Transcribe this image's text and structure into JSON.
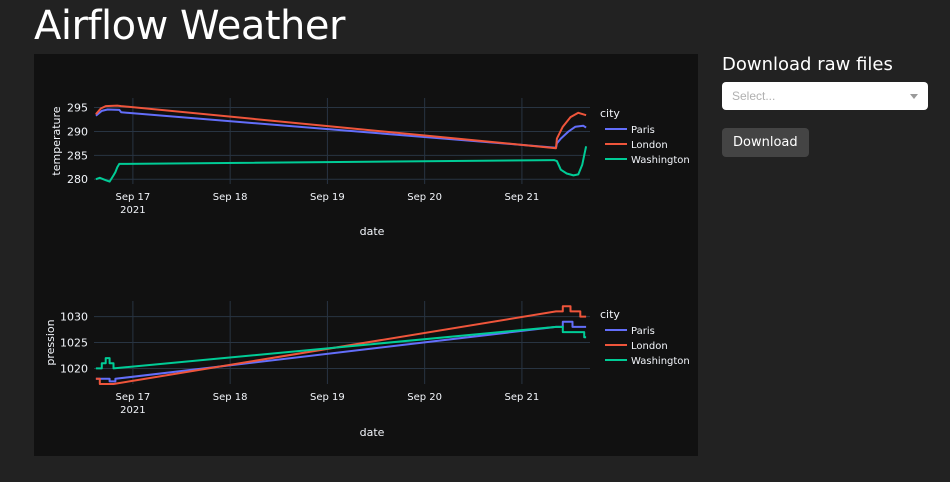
{
  "page": {
    "title": "Airflow Weather"
  },
  "sidebar": {
    "heading": "Download raw files",
    "select_placeholder": "Select...",
    "download_label": "Download"
  },
  "colors": {
    "Paris": "#636efa",
    "London": "#ef553b",
    "Washington": "#00cc96"
  },
  "chart_data": [
    {
      "type": "line",
      "xlabel": "date",
      "ylabel": "temperature",
      "legend_title": "city",
      "legend_placement": "right",
      "x_ticks": [
        "Sep 17\n2021",
        "Sep 18",
        "Sep 19",
        "Sep 20",
        "Sep 21"
      ],
      "x_range": [
        16.6,
        21.7
      ],
      "ylim": [
        279,
        297
      ],
      "y_ticks": [
        280,
        285,
        290,
        295
      ],
      "series": [
        {
          "name": "Paris",
          "points": [
            [
              16.62,
              293.3
            ],
            [
              16.68,
              294.3
            ],
            [
              16.74,
              294.6
            ],
            [
              16.86,
              294.5
            ],
            [
              16.88,
              294.0
            ],
            [
              21.35,
              286.6
            ],
            [
              21.36,
              287.5
            ],
            [
              21.4,
              288.5
            ],
            [
              21.48,
              290.0
            ],
            [
              21.55,
              291.0
            ],
            [
              21.63,
              291.2
            ],
            [
              21.66,
              290.8
            ]
          ]
        },
        {
          "name": "London",
          "points": [
            [
              16.62,
              293.6
            ],
            [
              16.67,
              294.8
            ],
            [
              16.72,
              295.3
            ],
            [
              16.84,
              295.4
            ],
            [
              16.88,
              295.3
            ],
            [
              21.35,
              286.5
            ],
            [
              21.36,
              288.5
            ],
            [
              21.42,
              291.0
            ],
            [
              21.5,
              293.0
            ],
            [
              21.58,
              293.9
            ],
            [
              21.66,
              293.4
            ]
          ]
        },
        {
          "name": "Washington",
          "points": [
            [
              16.62,
              280.0
            ],
            [
              16.66,
              280.3
            ],
            [
              16.72,
              279.8
            ],
            [
              16.76,
              279.5
            ],
            [
              16.8,
              280.8
            ],
            [
              16.82,
              281.5
            ],
            [
              16.84,
              282.5
            ],
            [
              16.86,
              283.2
            ],
            [
              21.33,
              284.0
            ],
            [
              21.36,
              283.8
            ],
            [
              21.4,
              282.0
            ],
            [
              21.46,
              281.2
            ],
            [
              21.53,
              280.8
            ],
            [
              21.58,
              281.0
            ],
            [
              21.62,
              283.0
            ],
            [
              21.64,
              285.0
            ],
            [
              21.66,
              286.9
            ]
          ]
        }
      ]
    },
    {
      "type": "line",
      "xlabel": "date",
      "ylabel": "pression",
      "legend_title": "city",
      "legend_placement": "right",
      "x_ticks": [
        "Sep 17\n2021",
        "Sep 18",
        "Sep 19",
        "Sep 20",
        "Sep 21"
      ],
      "x_range": [
        16.6,
        21.7
      ],
      "ylim": [
        1017,
        1033
      ],
      "y_ticks": [
        1020,
        1025,
        1030
      ],
      "series": [
        {
          "name": "Paris",
          "points": [
            [
              16.62,
              1018.0
            ],
            [
              16.76,
              1018.0
            ],
            [
              16.76,
              1017.5
            ],
            [
              16.82,
              1017.5
            ],
            [
              16.82,
              1018.0
            ],
            [
              21.35,
              1028.0
            ],
            [
              21.42,
              1028.0
            ],
            [
              21.42,
              1029.0
            ],
            [
              21.52,
              1029.0
            ],
            [
              21.52,
              1028.0
            ],
            [
              21.66,
              1028.0
            ]
          ]
        },
        {
          "name": "London",
          "points": [
            [
              16.62,
              1018.0
            ],
            [
              16.66,
              1018.0
            ],
            [
              16.66,
              1017.0
            ],
            [
              16.8,
              1017.0
            ],
            [
              21.35,
              1031.0
            ],
            [
              21.42,
              1031.0
            ],
            [
              21.42,
              1032.0
            ],
            [
              21.5,
              1032.0
            ],
            [
              21.5,
              1031.0
            ],
            [
              21.6,
              1031.0
            ],
            [
              21.6,
              1030.0
            ],
            [
              21.66,
              1030.0
            ]
          ]
        },
        {
          "name": "Washington",
          "points": [
            [
              16.62,
              1020.0
            ],
            [
              16.68,
              1020.0
            ],
            [
              16.68,
              1021.0
            ],
            [
              16.72,
              1021.0
            ],
            [
              16.72,
              1022.0
            ],
            [
              16.76,
              1022.0
            ],
            [
              16.76,
              1021.0
            ],
            [
              16.8,
              1021.0
            ],
            [
              16.8,
              1020.0
            ],
            [
              21.35,
              1028.0
            ],
            [
              21.42,
              1028.0
            ],
            [
              21.42,
              1027.0
            ],
            [
              21.64,
              1027.0
            ],
            [
              21.64,
              1026.0
            ],
            [
              21.66,
              1026.0
            ]
          ]
        }
      ]
    }
  ]
}
